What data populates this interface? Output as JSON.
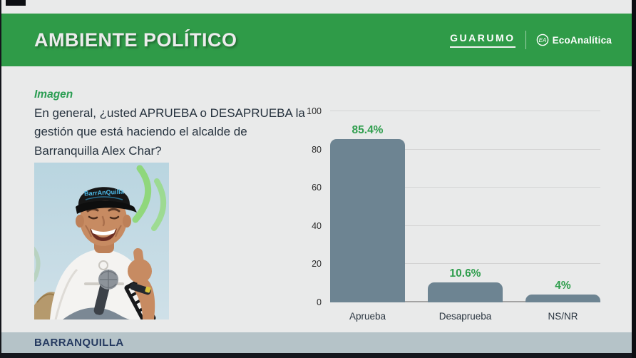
{
  "header": {
    "title": "AMBIENTE POLÍTICO",
    "bg_color": "#2f9b48",
    "brands": {
      "guarumo": "GUARUMO",
      "ecoanalitica": "EcoAnalítica",
      "eco_icon_monogram": "EA"
    }
  },
  "content": {
    "section_label": "Imagen",
    "question": "En general, ¿usted APRUEBA o DESAPRUEBA la gestión que está haciendo el alcalde de Barranquilla Alex Char?"
  },
  "chart_data": {
    "type": "bar",
    "categories": [
      "Aprueba",
      "Desaprueba",
      "NS/NR"
    ],
    "values": [
      85.4,
      10.6,
      4
    ],
    "value_labels": [
      "85.4%",
      "10.6%",
      "4%"
    ],
    "title": "",
    "xlabel": "",
    "ylabel": "",
    "ylim": [
      0,
      100
    ],
    "yticks": [
      0,
      20,
      40,
      60,
      80,
      100
    ],
    "grid": true,
    "legend": false,
    "bar_color": "#6d8492",
    "value_label_color": "#2f9e4d"
  },
  "footer": {
    "region": "BARRANQUILLA"
  }
}
